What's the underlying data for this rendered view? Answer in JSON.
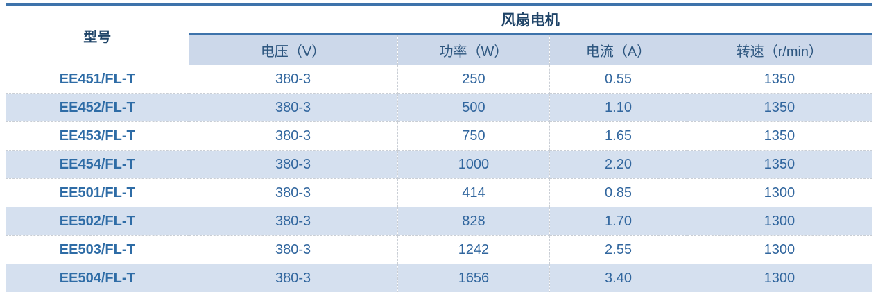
{
  "table": {
    "model_header": "型号",
    "group_header": "风扇电机",
    "subheaders": {
      "voltage": "电压（V）",
      "power": "功率（W）",
      "current": "电流（A）",
      "speed": "转速（r/min）"
    },
    "rows": [
      {
        "model": "EE451/FL-T",
        "voltage": "380-3",
        "power": "250",
        "current": "0.55",
        "speed": "1350"
      },
      {
        "model": "EE452/FL-T",
        "voltage": "380-3",
        "power": "500",
        "current": "1.10",
        "speed": "1350"
      },
      {
        "model": "EE453/FL-T",
        "voltage": "380-3",
        "power": "750",
        "current": "1.65",
        "speed": "1350"
      },
      {
        "model": "EE454/FL-T",
        "voltage": "380-3",
        "power": "1000",
        "current": "2.20",
        "speed": "1350"
      },
      {
        "model": "EE501/FL-T",
        "voltage": "380-3",
        "power": "414",
        "current": "0.85",
        "speed": "1300"
      },
      {
        "model": "EE502/FL-T",
        "voltage": "380-3",
        "power": "828",
        "current": "1.70",
        "speed": "1300"
      },
      {
        "model": "EE503/FL-T",
        "voltage": "380-3",
        "power": "1242",
        "current": "2.55",
        "speed": "1300"
      },
      {
        "model": "EE504/FL-T",
        "voltage": "380-3",
        "power": "1656",
        "current": "3.40",
        "speed": "1300"
      }
    ]
  },
  "colors": {
    "accent": "#3E73AB",
    "header_text": "#1F4468",
    "subheader_text": "#2D567F",
    "model_text": "#2E6CA6",
    "value_text": "#31669E",
    "subheader_bg": "#CCD8EA",
    "stripe_bg": "#D5E0EF",
    "grid_line": "#C9CED5"
  }
}
